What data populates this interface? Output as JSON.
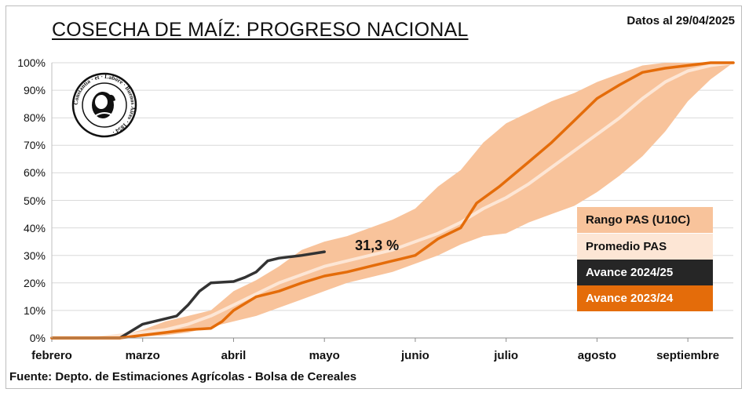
{
  "header": {
    "title": "COSECHA DE MAÍZ: PROGRESO NACIONAL",
    "date": "Datos al 29/04/2025"
  },
  "footer": {
    "source": "Fuente: Depto. de Estimaciones Agrícolas - Bolsa de Cereales"
  },
  "logo": {
    "text": "Constantia · et · Labore · Buenos Aires · 1854"
  },
  "annotation": {
    "label": "31,3 %",
    "week": 13,
    "value": 31.3
  },
  "chart_data": {
    "type": "area",
    "x_unit": "week of harvest season (week 0 = start of febrero)",
    "xlim": [
      0,
      30
    ],
    "ylim": [
      0,
      100
    ],
    "y_ticks": [
      "0%",
      "10%",
      "20%",
      "30%",
      "40%",
      "50%",
      "60%",
      "70%",
      "80%",
      "90%",
      "100%"
    ],
    "x_ticks": [
      {
        "label": "febrero",
        "week": 0
      },
      {
        "label": "marzo",
        "week": 4
      },
      {
        "label": "abril",
        "week": 8
      },
      {
        "label": "mayo",
        "week": 12
      },
      {
        "label": "junio",
        "week": 16
      },
      {
        "label": "julio",
        "week": 20
      },
      {
        "label": "agosto",
        "week": 24
      },
      {
        "label": "septiembre",
        "week": 28
      }
    ],
    "grid": true,
    "legend_position": "right",
    "band": {
      "name": "Rango PAS (U10C)",
      "color": "#f8c39b",
      "upper": [
        [
          0,
          0
        ],
        [
          2,
          0
        ],
        [
          3,
          1
        ],
        [
          4,
          3
        ],
        [
          5,
          6
        ],
        [
          6,
          8
        ],
        [
          7,
          10
        ],
        [
          8,
          17
        ],
        [
          9,
          21
        ],
        [
          10,
          26
        ],
        [
          11,
          32
        ],
        [
          12,
          35
        ],
        [
          13,
          37
        ],
        [
          14,
          40
        ],
        [
          15,
          43
        ],
        [
          16,
          47
        ],
        [
          17,
          55
        ],
        [
          18,
          61
        ],
        [
          19,
          71
        ],
        [
          20,
          78
        ],
        [
          21,
          82
        ],
        [
          22,
          86
        ],
        [
          23,
          89
        ],
        [
          24,
          93
        ],
        [
          25,
          96
        ],
        [
          26,
          99
        ],
        [
          27,
          100
        ],
        [
          30,
          100
        ]
      ],
      "lower": [
        [
          0,
          0
        ],
        [
          3,
          0
        ],
        [
          4,
          0.5
        ],
        [
          5,
          1
        ],
        [
          6,
          2
        ],
        [
          7,
          4
        ],
        [
          8,
          6
        ],
        [
          9,
          8
        ],
        [
          10,
          11
        ],
        [
          11,
          14
        ],
        [
          12,
          17
        ],
        [
          13,
          20
        ],
        [
          14,
          22
        ],
        [
          15,
          24
        ],
        [
          16,
          27
        ],
        [
          17,
          30
        ],
        [
          18,
          34
        ],
        [
          19,
          37
        ],
        [
          20,
          38
        ],
        [
          21,
          42
        ],
        [
          22,
          45
        ],
        [
          23,
          48
        ],
        [
          24,
          53
        ],
        [
          25,
          59
        ],
        [
          26,
          66
        ],
        [
          27,
          75
        ],
        [
          28,
          86
        ],
        [
          29,
          94
        ],
        [
          30,
          100
        ]
      ]
    },
    "series": [
      {
        "name": "Promedio PAS",
        "color": "#fde6d5",
        "points": [
          [
            0,
            0
          ],
          [
            2,
            0
          ],
          [
            3,
            1
          ],
          [
            4,
            2
          ],
          [
            5,
            3
          ],
          [
            6,
            5
          ],
          [
            7,
            8
          ],
          [
            8,
            12
          ],
          [
            9,
            16
          ],
          [
            10,
            20
          ],
          [
            11,
            23
          ],
          [
            12,
            26
          ],
          [
            13,
            28
          ],
          [
            14,
            30
          ],
          [
            15,
            32
          ],
          [
            16,
            35
          ],
          [
            17,
            38
          ],
          [
            18,
            42
          ],
          [
            19,
            47
          ],
          [
            20,
            51
          ],
          [
            21,
            56
          ],
          [
            22,
            62
          ],
          [
            23,
            68
          ],
          [
            24,
            74
          ],
          [
            25,
            80
          ],
          [
            26,
            87
          ],
          [
            27,
            93
          ],
          [
            28,
            97
          ],
          [
            29,
            99
          ],
          [
            30,
            100
          ]
        ]
      },
      {
        "name": "Avance 2024/25",
        "color": "#333333",
        "points": [
          [
            0,
            0
          ],
          [
            1,
            0
          ],
          [
            2,
            0
          ],
          [
            3,
            0
          ],
          [
            4,
            5
          ],
          [
            5,
            7
          ],
          [
            5.5,
            8
          ],
          [
            6,
            12
          ],
          [
            6.5,
            17
          ],
          [
            7,
            20
          ],
          [
            8,
            20.5
          ],
          [
            8.5,
            22
          ],
          [
            9,
            24
          ],
          [
            9.5,
            28
          ],
          [
            10,
            29
          ],
          [
            11,
            30
          ],
          [
            12,
            31.3
          ]
        ]
      },
      {
        "name": "Avance 2023/24",
        "color": "#e46c0a",
        "points": [
          [
            0,
            0
          ],
          [
            3,
            0
          ],
          [
            4,
            1
          ],
          [
            5,
            2
          ],
          [
            6,
            3
          ],
          [
            7,
            3.5
          ],
          [
            7.5,
            6
          ],
          [
            8,
            10
          ],
          [
            9,
            15
          ],
          [
            10,
            17
          ],
          [
            11,
            20
          ],
          [
            12,
            22.5
          ],
          [
            13,
            24
          ],
          [
            14,
            26
          ],
          [
            15,
            28
          ],
          [
            16,
            30
          ],
          [
            17,
            36
          ],
          [
            18,
            40
          ],
          [
            18.7,
            49
          ],
          [
            19.7,
            55
          ],
          [
            21,
            64
          ],
          [
            22,
            71
          ],
          [
            23,
            79
          ],
          [
            24,
            87
          ],
          [
            25,
            92
          ],
          [
            26,
            96.5
          ],
          [
            27,
            98
          ],
          [
            28,
            99
          ],
          [
            29,
            100
          ],
          [
            30,
            100
          ]
        ]
      }
    ]
  }
}
